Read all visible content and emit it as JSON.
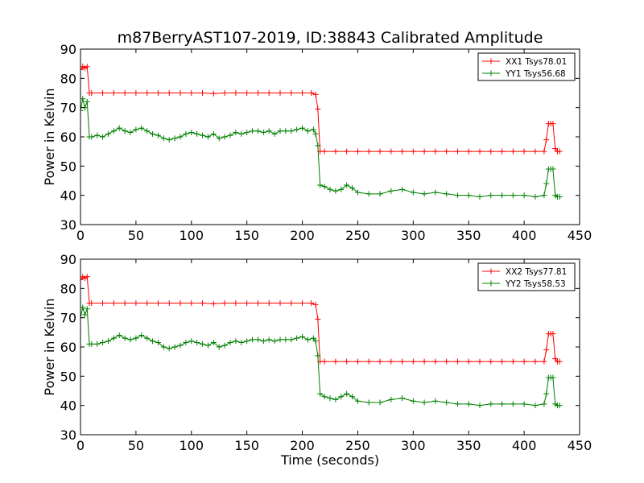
{
  "figure": {
    "title": "m87BerryAST107-2019, ID:38843 Calibrated Amplitude",
    "xlabel": "Time (seconds)"
  },
  "colors": {
    "xx": "#ff0000",
    "yy": "#008000",
    "axes": "#000000",
    "background": "#ffffff"
  },
  "chart_data": [
    {
      "type": "line",
      "title": "m87BerryAST107-2019, ID:38843 Calibrated Amplitude",
      "xlabel": "",
      "ylabel": "Power in Kelvin",
      "xlim": [
        0,
        450
      ],
      "ylim": [
        30,
        90
      ],
      "xticks": [
        "0",
        "50",
        "100",
        "150",
        "200",
        "250",
        "300",
        "350",
        "400",
        "450"
      ],
      "yticks": [
        "30",
        "40",
        "50",
        "60",
        "70",
        "80",
        "90"
      ],
      "legend": "top-right",
      "grid": false,
      "marker": "+",
      "series": [
        {
          "name": "XX1 Tsys78.01",
          "color": "#ff0000",
          "x": [
            0,
            2,
            4,
            6,
            8,
            10,
            20,
            30,
            40,
            50,
            60,
            70,
            80,
            90,
            100,
            110,
            120,
            130,
            140,
            150,
            160,
            170,
            180,
            190,
            200,
            208,
            212,
            214,
            216,
            220,
            230,
            240,
            250,
            260,
            270,
            280,
            290,
            300,
            310,
            320,
            330,
            340,
            350,
            360,
            370,
            380,
            390,
            400,
            410,
            418,
            420,
            422,
            424,
            426,
            428,
            430,
            432
          ],
          "y": [
            83,
            84,
            83.5,
            84,
            75,
            75,
            75,
            75,
            75,
            75,
            75,
            75,
            75,
            75,
            75,
            75,
            74.8,
            75,
            75,
            75,
            75,
            75,
            75,
            75,
            75,
            75,
            74.5,
            69.5,
            55,
            55,
            55,
            55,
            55,
            55,
            55,
            55,
            55,
            55,
            55,
            55,
            55,
            55,
            55,
            55,
            55,
            55,
            55,
            55,
            55,
            55,
            59,
            64.5,
            64.5,
            64.5,
            56,
            55,
            55
          ]
        },
        {
          "name": "YY1 Tsys56.68",
          "color": "#008000",
          "x": [
            0,
            2,
            4,
            6,
            8,
            10,
            15,
            20,
            25,
            30,
            35,
            40,
            45,
            50,
            55,
            60,
            65,
            70,
            75,
            80,
            85,
            90,
            95,
            100,
            105,
            110,
            115,
            120,
            125,
            130,
            135,
            140,
            145,
            150,
            155,
            160,
            165,
            170,
            175,
            180,
            185,
            190,
            195,
            200,
            205,
            210,
            212,
            214,
            216,
            220,
            225,
            230,
            235,
            240,
            245,
            250,
            260,
            270,
            280,
            290,
            300,
            310,
            320,
            330,
            340,
            350,
            360,
            370,
            380,
            390,
            400,
            410,
            418,
            420,
            422,
            424,
            426,
            428,
            430,
            432
          ],
          "y": [
            69,
            73,
            70,
            72,
            60,
            60,
            60.5,
            60,
            61,
            62,
            63,
            62,
            61.5,
            62.5,
            63,
            62,
            61,
            60.5,
            59.5,
            59,
            59.5,
            60,
            61,
            61.5,
            61,
            60.5,
            60,
            61,
            59.5,
            60,
            60.5,
            61.5,
            61,
            61.5,
            62,
            62,
            61.5,
            62,
            61,
            62,
            62,
            62,
            62.5,
            63,
            62,
            62.5,
            61,
            57,
            43.5,
            43,
            42,
            41.5,
            42,
            43.5,
            42.5,
            41,
            40.5,
            40.5,
            41.5,
            42,
            41,
            40.5,
            41,
            40.5,
            40,
            40,
            39.5,
            40,
            40,
            40,
            40,
            39.5,
            40,
            44,
            49,
            49,
            49,
            40,
            39.5,
            39.5
          ]
        }
      ]
    },
    {
      "type": "line",
      "title": "",
      "xlabel": "Time (seconds)",
      "ylabel": "Power in Kelvin",
      "xlim": [
        0,
        450
      ],
      "ylim": [
        30,
        90
      ],
      "xticks": [
        "0",
        "50",
        "100",
        "150",
        "200",
        "250",
        "300",
        "350",
        "400",
        "450"
      ],
      "yticks": [
        "30",
        "40",
        "50",
        "60",
        "70",
        "80",
        "90"
      ],
      "legend": "top-right",
      "grid": false,
      "marker": "+",
      "series": [
        {
          "name": "XX2 Tsys77.81",
          "color": "#ff0000",
          "x": [
            0,
            2,
            4,
            6,
            8,
            10,
            20,
            30,
            40,
            50,
            60,
            70,
            80,
            90,
            100,
            110,
            120,
            130,
            140,
            150,
            160,
            170,
            180,
            190,
            200,
            208,
            212,
            214,
            216,
            220,
            230,
            240,
            250,
            260,
            270,
            280,
            290,
            300,
            310,
            320,
            330,
            340,
            350,
            360,
            370,
            380,
            390,
            400,
            410,
            418,
            420,
            422,
            424,
            426,
            428,
            430,
            432
          ],
          "y": [
            83,
            84,
            83.5,
            84,
            75,
            75,
            75,
            75,
            75,
            75,
            75,
            75,
            75,
            75,
            75,
            75,
            74.8,
            75,
            75,
            75,
            75,
            75,
            75,
            75,
            75,
            75,
            74.5,
            69.5,
            55,
            55,
            55,
            55,
            55,
            55,
            55,
            55,
            55,
            55,
            55,
            55,
            55,
            55,
            55,
            55,
            55,
            55,
            55,
            55,
            55,
            55,
            59,
            64.5,
            64.5,
            64.5,
            56,
            55,
            55
          ]
        },
        {
          "name": "YY2 Tsys58.53",
          "color": "#008000",
          "x": [
            0,
            2,
            4,
            6,
            8,
            10,
            15,
            20,
            25,
            30,
            35,
            40,
            45,
            50,
            55,
            60,
            65,
            70,
            75,
            80,
            85,
            90,
            95,
            100,
            105,
            110,
            115,
            120,
            125,
            130,
            135,
            140,
            145,
            150,
            155,
            160,
            165,
            170,
            175,
            180,
            185,
            190,
            195,
            200,
            205,
            210,
            212,
            214,
            216,
            220,
            225,
            230,
            235,
            240,
            245,
            250,
            260,
            270,
            280,
            290,
            300,
            310,
            320,
            330,
            340,
            350,
            360,
            370,
            380,
            390,
            400,
            410,
            418,
            420,
            422,
            424,
            426,
            428,
            430,
            432
          ],
          "y": [
            70,
            73.5,
            71,
            73,
            61,
            61,
            61,
            61.5,
            62,
            63,
            64,
            63,
            62.5,
            63,
            64,
            63,
            62,
            61.5,
            60,
            59.5,
            60,
            60.5,
            61.5,
            62,
            61.5,
            61,
            60.5,
            61.5,
            60,
            60.5,
            61.5,
            62,
            61.5,
            62,
            62.5,
            62.5,
            62,
            62.5,
            62,
            62.5,
            62.5,
            62.5,
            63,
            63.5,
            62.5,
            63,
            62,
            57,
            44,
            43,
            42.5,
            42,
            43,
            44,
            43,
            41.5,
            41,
            41,
            42,
            42.5,
            41.5,
            41,
            41.5,
            41,
            40.5,
            40.5,
            40,
            40.5,
            40.5,
            40.5,
            40.5,
            40,
            40.5,
            44,
            49.5,
            49.5,
            49.5,
            40.5,
            40,
            40
          ]
        }
      ]
    }
  ]
}
